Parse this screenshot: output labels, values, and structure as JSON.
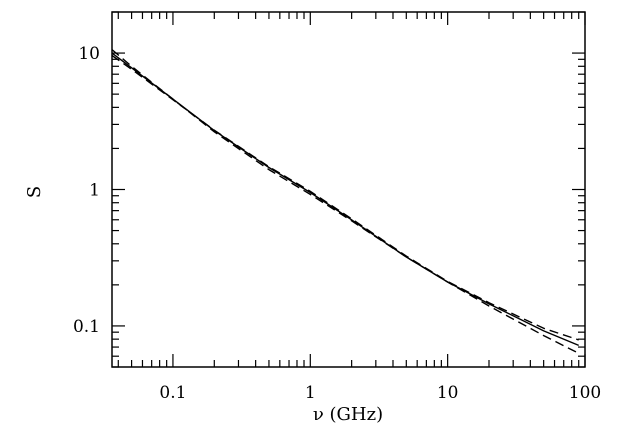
{
  "chart_data": {
    "type": "line",
    "title": "",
    "xlabel": "ν (GHz)",
    "ylabel": "S",
    "xscale": "log",
    "yscale": "log",
    "xlim": [
      0.036,
      100
    ],
    "ylim": [
      0.05,
      20
    ],
    "grid": false,
    "legend": "none",
    "x_tick_labels": [
      "0.1",
      "1",
      "10",
      "100"
    ],
    "y_tick_labels": [
      "0.1",
      "1",
      "10"
    ],
    "x_tick_values": [
      0.1,
      1,
      10,
      100
    ],
    "y_tick_values": [
      0.1,
      1,
      10
    ],
    "series": [
      {
        "style": "solid",
        "x": [
          0.036,
          0.05,
          0.1,
          0.2,
          0.5,
          1,
          2,
          5,
          10,
          20,
          50,
          90
        ],
        "y": [
          10.0,
          7.8,
          4.6,
          2.7,
          1.45,
          0.95,
          0.6,
          0.32,
          0.21,
          0.145,
          0.092,
          0.072
        ]
      },
      {
        "style": "dashed",
        "x": [
          0.036,
          0.05,
          0.1,
          0.2,
          0.5,
          1,
          2,
          5,
          10,
          20,
          50,
          90
        ],
        "y": [
          10.6,
          8.0,
          4.6,
          2.65,
          1.4,
          0.92,
          0.59,
          0.32,
          0.21,
          0.14,
          0.085,
          0.063
        ]
      },
      {
        "style": "dashed",
        "x": [
          0.036,
          0.05,
          0.1,
          0.2,
          0.5,
          1,
          2,
          5,
          10,
          20,
          50,
          90
        ],
        "y": [
          9.6,
          7.6,
          4.55,
          2.72,
          1.47,
          0.97,
          0.61,
          0.325,
          0.212,
          0.148,
          0.096,
          0.079
        ]
      }
    ],
    "colors": {
      "line": "#000000",
      "frame": "#000000",
      "background": "#ffffff"
    }
  }
}
